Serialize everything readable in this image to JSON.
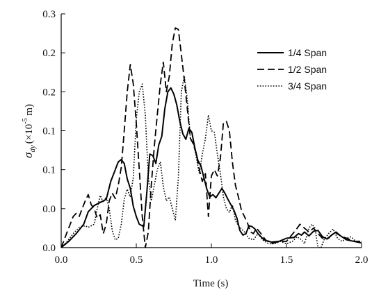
{
  "chart_data": {
    "type": "line",
    "xlabel": "Time (s)",
    "ylabel_symbol": "σ",
    "ylabel_subscript": "dy",
    "ylabel_unit_prefix": "(×10",
    "ylabel_unit_exp": "-5",
    "ylabel_unit_suffix": " m)",
    "xlim": [
      0.0,
      2.0
    ],
    "ylim": [
      0.0,
      0.3
    ],
    "x_ticks": [
      0.0,
      0.5,
      1.0,
      1.5,
      2.0
    ],
    "x_tick_labels": [
      "0.0",
      "0.5",
      "1.0",
      "1.5",
      "2.0"
    ],
    "y_ticks": [
      0.0,
      0.05,
      0.1,
      0.15,
      0.2,
      0.25,
      0.3
    ],
    "y_tick_labels": [
      "0.0",
      "0.0",
      "0.1",
      "0.1",
      "0.2",
      "0.2",
      "0.3"
    ],
    "grid": false,
    "legend_position": "top-right",
    "series": [
      {
        "name": "1/4 Span",
        "dash": "solid",
        "points": [
          [
            0.0,
            0.0
          ],
          [
            0.05,
            0.008
          ],
          [
            0.1,
            0.018
          ],
          [
            0.15,
            0.03
          ],
          [
            0.18,
            0.046
          ],
          [
            0.22,
            0.054
          ],
          [
            0.26,
            0.058
          ],
          [
            0.3,
            0.062
          ],
          [
            0.33,
            0.085
          ],
          [
            0.36,
            0.1
          ],
          [
            0.38,
            0.11
          ],
          [
            0.4,
            0.113
          ],
          [
            0.42,
            0.108
          ],
          [
            0.44,
            0.088
          ],
          [
            0.46,
            0.076
          ],
          [
            0.48,
            0.053
          ],
          [
            0.5,
            0.04
          ],
          [
            0.52,
            0.03
          ],
          [
            0.55,
            0.027
          ],
          [
            0.57,
            0.07
          ],
          [
            0.59,
            0.12
          ],
          [
            0.61,
            0.118
          ],
          [
            0.63,
            0.108
          ],
          [
            0.65,
            0.132
          ],
          [
            0.67,
            0.143
          ],
          [
            0.69,
            0.178
          ],
          [
            0.71,
            0.2
          ],
          [
            0.73,
            0.205
          ],
          [
            0.75,
            0.197
          ],
          [
            0.77,
            0.183
          ],
          [
            0.79,
            0.162
          ],
          [
            0.81,
            0.146
          ],
          [
            0.83,
            0.139
          ],
          [
            0.85,
            0.153
          ],
          [
            0.87,
            0.148
          ],
          [
            0.89,
            0.128
          ],
          [
            0.91,
            0.112
          ],
          [
            0.93,
            0.105
          ],
          [
            0.95,
            0.09
          ],
          [
            0.97,
            0.075
          ],
          [
            0.99,
            0.065
          ],
          [
            1.01,
            0.068
          ],
          [
            1.03,
            0.064
          ],
          [
            1.05,
            0.07
          ],
          [
            1.07,
            0.076
          ],
          [
            1.09,
            0.07
          ],
          [
            1.11,
            0.062
          ],
          [
            1.13,
            0.055
          ],
          [
            1.15,
            0.048
          ],
          [
            1.17,
            0.038
          ],
          [
            1.19,
            0.022
          ],
          [
            1.21,
            0.016
          ],
          [
            1.23,
            0.018
          ],
          [
            1.25,
            0.028
          ],
          [
            1.27,
            0.027
          ],
          [
            1.29,
            0.024
          ],
          [
            1.31,
            0.018
          ],
          [
            1.33,
            0.014
          ],
          [
            1.35,
            0.01
          ],
          [
            1.4,
            0.007
          ],
          [
            1.45,
            0.008
          ],
          [
            1.5,
            0.012
          ],
          [
            1.55,
            0.013
          ],
          [
            1.58,
            0.018
          ],
          [
            1.6,
            0.016
          ],
          [
            1.62,
            0.02
          ],
          [
            1.65,
            0.015
          ],
          [
            1.68,
            0.021
          ],
          [
            1.71,
            0.022
          ],
          [
            1.74,
            0.014
          ],
          [
            1.77,
            0.011
          ],
          [
            1.8,
            0.016
          ],
          [
            1.83,
            0.02
          ],
          [
            1.86,
            0.015
          ],
          [
            1.9,
            0.01
          ],
          [
            1.95,
            0.008
          ],
          [
            2.0,
            0.006
          ]
        ]
      },
      {
        "name": "1/2 Span",
        "dash": "dashed",
        "points": [
          [
            0.0,
            0.0
          ],
          [
            0.04,
            0.02
          ],
          [
            0.08,
            0.04
          ],
          [
            0.1,
            0.044
          ],
          [
            0.12,
            0.04
          ],
          [
            0.14,
            0.05
          ],
          [
            0.16,
            0.06
          ],
          [
            0.18,
            0.068
          ],
          [
            0.2,
            0.055
          ],
          [
            0.22,
            0.05
          ],
          [
            0.24,
            0.038
          ],
          [
            0.26,
            0.042
          ],
          [
            0.28,
            0.018
          ],
          [
            0.3,
            0.03
          ],
          [
            0.32,
            0.06
          ],
          [
            0.34,
            0.07
          ],
          [
            0.36,
            0.063
          ],
          [
            0.38,
            0.08
          ],
          [
            0.4,
            0.103
          ],
          [
            0.42,
            0.15
          ],
          [
            0.44,
            0.2
          ],
          [
            0.46,
            0.235
          ],
          [
            0.48,
            0.21
          ],
          [
            0.5,
            0.16
          ],
          [
            0.52,
            0.1
          ],
          [
            0.54,
            0.04
          ],
          [
            0.56,
            0.0
          ],
          [
            0.58,
            0.02
          ],
          [
            0.6,
            0.08
          ],
          [
            0.62,
            0.13
          ],
          [
            0.64,
            0.17
          ],
          [
            0.66,
            0.21
          ],
          [
            0.68,
            0.238
          ],
          [
            0.7,
            0.2
          ],
          [
            0.72,
            0.22
          ],
          [
            0.74,
            0.262
          ],
          [
            0.76,
            0.282
          ],
          [
            0.78,
            0.28
          ],
          [
            0.8,
            0.248
          ],
          [
            0.82,
            0.215
          ],
          [
            0.84,
            0.178
          ],
          [
            0.86,
            0.14
          ],
          [
            0.88,
            0.133
          ],
          [
            0.9,
            0.12
          ],
          [
            0.92,
            0.1
          ],
          [
            0.94,
            0.085
          ],
          [
            0.96,
            0.095
          ],
          [
            0.98,
            0.04
          ],
          [
            1.0,
            0.092
          ],
          [
            1.02,
            0.1
          ],
          [
            1.04,
            0.092
          ],
          [
            1.06,
            0.115
          ],
          [
            1.08,
            0.16
          ],
          [
            1.1,
            0.162
          ],
          [
            1.12,
            0.15
          ],
          [
            1.14,
            0.11
          ],
          [
            1.16,
            0.08
          ],
          [
            1.18,
            0.065
          ],
          [
            1.2,
            0.048
          ],
          [
            1.22,
            0.04
          ],
          [
            1.24,
            0.032
          ],
          [
            1.26,
            0.02
          ],
          [
            1.28,
            0.018
          ],
          [
            1.3,
            0.025
          ],
          [
            1.33,
            0.018
          ],
          [
            1.36,
            0.01
          ],
          [
            1.4,
            0.005
          ],
          [
            1.45,
            0.008
          ],
          [
            1.5,
            0.008
          ],
          [
            1.53,
            0.015
          ],
          [
            1.56,
            0.022
          ],
          [
            1.59,
            0.03
          ],
          [
            1.62,
            0.025
          ],
          [
            1.65,
            0.02
          ],
          [
            1.68,
            0.025
          ],
          [
            1.71,
            0.018
          ],
          [
            1.74,
            0.012
          ],
          [
            1.78,
            0.012
          ],
          [
            1.82,
            0.02
          ],
          [
            1.86,
            0.015
          ],
          [
            1.9,
            0.012
          ],
          [
            1.95,
            0.008
          ],
          [
            2.0,
            0.008
          ]
        ]
      },
      {
        "name": "3/4 Span",
        "dash": "dotted",
        "points": [
          [
            0.0,
            0.0
          ],
          [
            0.04,
            0.008
          ],
          [
            0.08,
            0.018
          ],
          [
            0.12,
            0.026
          ],
          [
            0.16,
            0.028
          ],
          [
            0.18,
            0.026
          ],
          [
            0.2,
            0.028
          ],
          [
            0.22,
            0.03
          ],
          [
            0.24,
            0.05
          ],
          [
            0.26,
            0.067
          ],
          [
            0.28,
            0.058
          ],
          [
            0.3,
            0.065
          ],
          [
            0.32,
            0.05
          ],
          [
            0.34,
            0.022
          ],
          [
            0.36,
            0.01
          ],
          [
            0.38,
            0.012
          ],
          [
            0.4,
            0.03
          ],
          [
            0.42,
            0.062
          ],
          [
            0.44,
            0.075
          ],
          [
            0.46,
            0.065
          ],
          [
            0.48,
            0.09
          ],
          [
            0.5,
            0.165
          ],
          [
            0.52,
            0.2
          ],
          [
            0.54,
            0.21
          ],
          [
            0.56,
            0.17
          ],
          [
            0.58,
            0.09
          ],
          [
            0.6,
            0.06
          ],
          [
            0.62,
            0.08
          ],
          [
            0.64,
            0.1
          ],
          [
            0.66,
            0.11
          ],
          [
            0.68,
            0.078
          ],
          [
            0.7,
            0.06
          ],
          [
            0.72,
            0.065
          ],
          [
            0.74,
            0.05
          ],
          [
            0.76,
            0.035
          ],
          [
            0.78,
            0.09
          ],
          [
            0.8,
            0.2
          ],
          [
            0.82,
            0.22
          ],
          [
            0.84,
            0.19
          ],
          [
            0.86,
            0.14
          ],
          [
            0.88,
            0.135
          ],
          [
            0.9,
            0.115
          ],
          [
            0.92,
            0.095
          ],
          [
            0.94,
            0.12
          ],
          [
            0.96,
            0.14
          ],
          [
            0.98,
            0.17
          ],
          [
            1.0,
            0.15
          ],
          [
            1.02,
            0.148
          ],
          [
            1.04,
            0.12
          ],
          [
            1.06,
            0.095
          ],
          [
            1.08,
            0.065
          ],
          [
            1.1,
            0.05
          ],
          [
            1.12,
            0.045
          ],
          [
            1.14,
            0.055
          ],
          [
            1.16,
            0.035
          ],
          [
            1.18,
            0.028
          ],
          [
            1.2,
            0.024
          ],
          [
            1.22,
            0.02
          ],
          [
            1.25,
            0.012
          ],
          [
            1.28,
            0.01
          ],
          [
            1.31,
            0.018
          ],
          [
            1.34,
            0.01
          ],
          [
            1.38,
            0.005
          ],
          [
            1.42,
            0.005
          ],
          [
            1.46,
            0.008
          ],
          [
            1.5,
            0.005
          ],
          [
            1.54,
            0.008
          ],
          [
            1.57,
            0.014
          ],
          [
            1.6,
            0.01
          ],
          [
            1.62,
            0.005
          ],
          [
            1.65,
            0.025
          ],
          [
            1.67,
            0.03
          ],
          [
            1.69,
            0.025
          ],
          [
            1.71,
            0.0
          ],
          [
            1.73,
            -0.002
          ],
          [
            1.75,
            0.01
          ],
          [
            1.78,
            0.018
          ],
          [
            1.81,
            0.024
          ],
          [
            1.84,
            0.012
          ],
          [
            1.87,
            0.008
          ],
          [
            1.9,
            0.012
          ],
          [
            1.93,
            0.014
          ],
          [
            1.96,
            0.008
          ],
          [
            2.0,
            0.008
          ]
        ]
      }
    ]
  }
}
